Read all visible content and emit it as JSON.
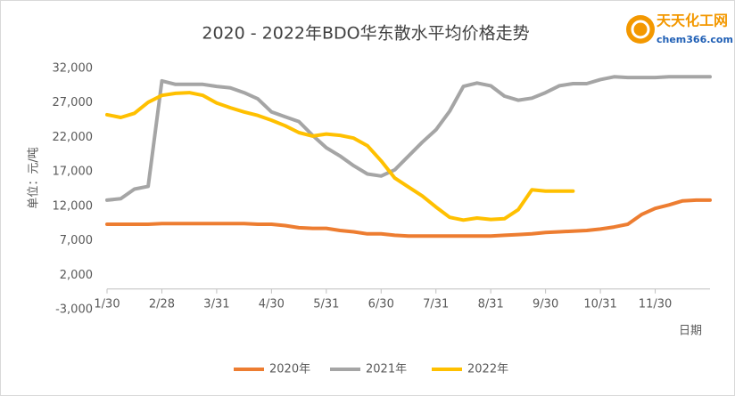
{
  "logo": {
    "name": "天天化工网",
    "site": "chem366.com"
  },
  "chart_data": {
    "type": "line",
    "title": "2020 - 2022年BDO华东散水平均价格走势",
    "y_label": "单位：元/吨",
    "x_label": "日期",
    "categories": [
      "1/30",
      null,
      null,
      null,
      "2/28",
      null,
      null,
      null,
      "3/31",
      null,
      null,
      null,
      "4/30",
      null,
      null,
      null,
      "5/31",
      null,
      null,
      null,
      "6/30",
      null,
      null,
      null,
      "7/31",
      null,
      null,
      null,
      "8/31",
      null,
      null,
      null,
      "9/30",
      null,
      null,
      null,
      "10/31",
      null,
      null,
      null,
      "11/30",
      null,
      null,
      null,
      null
    ],
    "series": [
      {
        "name": "2020年",
        "color": "#ed7d31",
        "values": [
          9400,
          9400,
          9400,
          9400,
          9500,
          9500,
          9500,
          9500,
          9500,
          9500,
          9500,
          9400,
          9400,
          9200,
          8900,
          8800,
          8800,
          8500,
          8300,
          8000,
          8000,
          7800,
          7700,
          7700,
          7700,
          7700,
          7700,
          7700,
          7700,
          7800,
          7900,
          8000,
          8200,
          8300,
          8400,
          8500,
          8700,
          9000,
          9400,
          10800,
          11700,
          12200,
          12800,
          12900,
          12900
        ]
      },
      {
        "name": "2021年",
        "color": "#a5a5a5",
        "values": [
          12900,
          13100,
          14500,
          14900,
          30200,
          29700,
          29700,
          29700,
          29400,
          29200,
          28500,
          27600,
          25700,
          25000,
          24300,
          22300,
          20500,
          19300,
          17900,
          16700,
          16400,
          17300,
          19300,
          21300,
          23100,
          25800,
          29400,
          29900,
          29500,
          28000,
          27400,
          27700,
          28500,
          29500,
          29800,
          29800,
          30400,
          30800,
          30700,
          30700,
          30700,
          30800,
          30800,
          30800,
          30800
        ]
      },
      {
        "name": "2022年",
        "color": "#ffc000",
        "values": [
          25300,
          24900,
          25500,
          27100,
          28100,
          28400,
          28500,
          28100,
          27000,
          26300,
          25700,
          25200,
          24500,
          23700,
          22700,
          22200,
          22500,
          22300,
          21900,
          20800,
          18600,
          16100,
          14800,
          13500,
          11900,
          10400,
          10000,
          10300,
          10100,
          10200,
          11500,
          14400,
          14200,
          14200,
          14200,
          null,
          null,
          null,
          null,
          null,
          null,
          null,
          null,
          null,
          null
        ]
      }
    ],
    "ylim": [
      -3000,
      32000
    ],
    "yticks": [
      {
        "value": -3000,
        "label": "-3,000"
      },
      {
        "value": 2000,
        "label": "2,000"
      },
      {
        "value": 7000,
        "label": "7,000"
      },
      {
        "value": 12000,
        "label": "12,000"
      },
      {
        "value": 17000,
        "label": "17,000"
      },
      {
        "value": 22000,
        "label": "22,000"
      },
      {
        "value": 27000,
        "label": "27,000"
      },
      {
        "value": 32000,
        "label": "32,000"
      }
    ],
    "grid": false,
    "legend": "bottom"
  }
}
